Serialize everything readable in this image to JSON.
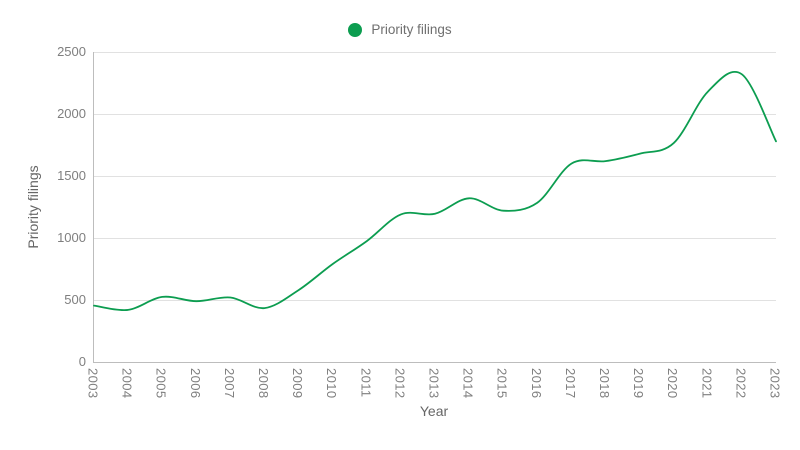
{
  "chart_data": {
    "type": "line",
    "title": "",
    "xlabel": "Year",
    "ylabel": "Priority filings",
    "categories": [
      "2003",
      "2004",
      "2005",
      "2006",
      "2007",
      "2008",
      "2009",
      "2010",
      "2011",
      "2012",
      "2013",
      "2014",
      "2015",
      "2016",
      "2017",
      "2018",
      "2019",
      "2020",
      "2021",
      "2022",
      "2023"
    ],
    "series": [
      {
        "name": "Priority filings",
        "color": "#0c9d50",
        "values": [
          455,
          420,
          525,
          490,
          520,
          435,
          580,
          790,
          975,
          1190,
          1195,
          1320,
          1220,
          1285,
          1600,
          1620,
          1680,
          1765,
          2180,
          2320,
          1780
        ]
      }
    ],
    "ylim": [
      0,
      2500
    ],
    "yticks": [
      0,
      500,
      1000,
      1500,
      2000,
      2500
    ],
    "grid": "horizontal-only",
    "legend_position": "top-center",
    "line_style": "smooth"
  },
  "legend": {
    "marker_icon": "circle-icon",
    "label": "Priority filings"
  },
  "colors": {
    "line": "#0c9d50",
    "gridline": "#e1e1e1",
    "axis_line": "#bdbdbd",
    "tick_text": "#7f7f7f",
    "axis_title_text": "#666666",
    "legend_text": "#6f6f6f",
    "background": "#ffffff"
  }
}
